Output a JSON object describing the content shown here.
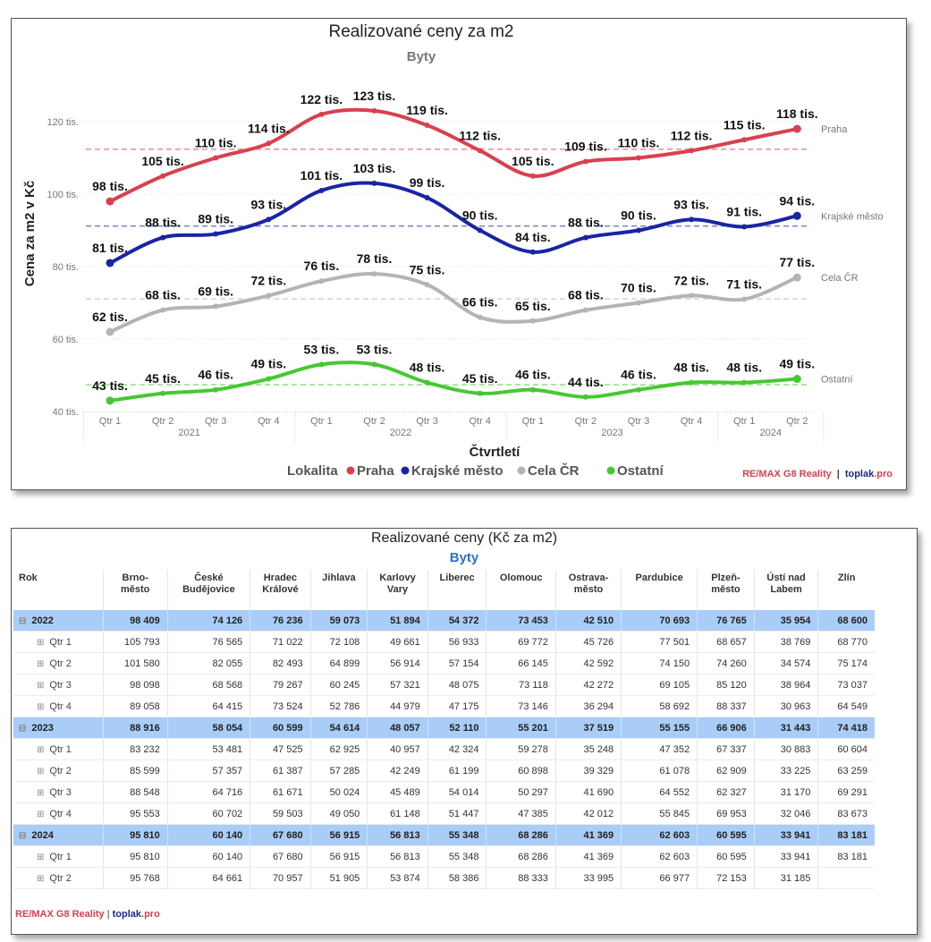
{
  "chart": {
    "title": "Realizované ceny za m2",
    "subtitle": "Byty",
    "legend_title": "Lokalita",
    "branding": {
      "part1": "RE/MAX G8 Reality",
      "separator": "|",
      "part2a": "toplak",
      "part2b": ".pro"
    }
  },
  "chart_data": {
    "type": "line",
    "title": "Realizované ceny za m2",
    "subtitle": "Byty",
    "xlabel": "Čtvrtletí",
    "ylabel": "Cena za m2 v Kč",
    "ylim": [
      40000,
      125000
    ],
    "yticks": [
      40000,
      60000,
      80000,
      100000,
      120000
    ],
    "ytick_labels": [
      "40 tis.",
      "60 tis.",
      "80 tis.",
      "100 tis.",
      "120 tis."
    ],
    "grid": true,
    "legend_position": "bottom",
    "x": [
      "Qtr 1",
      "Qtr 2",
      "Qtr 3",
      "Qtr 4",
      "Qtr 1",
      "Qtr 2",
      "Qtr 3",
      "Qtr 4",
      "Qtr 1",
      "Qtr 2",
      "Qtr 3",
      "Qtr 4",
      "Qtr 1",
      "Qtr 2"
    ],
    "x_groups": [
      {
        "label": "2021",
        "count": 4
      },
      {
        "label": "2022",
        "count": 4
      },
      {
        "label": "2023",
        "count": 4
      },
      {
        "label": "2024",
        "count": 2
      }
    ],
    "series": [
      {
        "name": "Praha",
        "color": "#d9404f",
        "avg_line": 112400,
        "values": [
          98000,
          105000,
          110000,
          114000,
          122000,
          123000,
          119000,
          112000,
          105000,
          109000,
          110000,
          112000,
          115000,
          118000
        ],
        "labels": [
          "98 tis.",
          "105 tis.",
          "110 tis.",
          "114 tis.",
          "122 tis.",
          "123 tis.",
          "119 tis.",
          "112 tis.",
          "105 tis.",
          "109 tis.",
          "110 tis.",
          "112 tis.",
          "115 tis.",
          "118 tis."
        ]
      },
      {
        "name": "Krajské město",
        "color": "#1a25a3",
        "avg_line": 91200,
        "values": [
          81000,
          88000,
          89000,
          93000,
          101000,
          103000,
          99000,
          90000,
          84000,
          88000,
          90000,
          93000,
          91000,
          94000
        ],
        "labels": [
          "81 tis.",
          "88 tis.",
          "89 tis.",
          "93 tis.",
          "101 tis.",
          "103 tis.",
          "99 tis.",
          "90 tis.",
          "84 tis.",
          "88 tis.",
          "90 tis.",
          "93 tis.",
          "91 tis.",
          "94 tis."
        ]
      },
      {
        "name": "Cela ČR",
        "color": "#b4b4b4",
        "avg_line": 71100,
        "values": [
          62000,
          68000,
          69000,
          72000,
          76000,
          78000,
          75000,
          66000,
          65000,
          68000,
          70000,
          72000,
          71000,
          77000
        ],
        "labels": [
          "62 tis.",
          "68 tis.",
          "69 tis.",
          "72 tis.",
          "76 tis.",
          "78 tis.",
          "75 tis.",
          "66 tis.",
          "65 tis.",
          "68 tis.",
          "70 tis.",
          "72 tis.",
          "71 tis.",
          "77 tis."
        ]
      },
      {
        "name": "Ostatní",
        "color": "#46c832",
        "avg_line": 47400,
        "values": [
          43000,
          45000,
          46000,
          49000,
          53000,
          53000,
          48000,
          45000,
          46000,
          44000,
          46000,
          48000,
          48000,
          49000
        ],
        "labels": [
          "43 tis.",
          "45 tis.",
          "46 tis.",
          "49 tis.",
          "53 tis.",
          "53 tis.",
          "48 tis.",
          "45 tis.",
          "46 tis.",
          "44 tis.",
          "46 tis.",
          "48 tis.",
          "48 tis.",
          "49 tis."
        ]
      }
    ]
  },
  "table": {
    "title": "Realizované ceny (Kč za m2)",
    "subtitle": "Byty",
    "columns": [
      "Rok",
      "Brno-\nměsto",
      "České\nBudějovice",
      "Hradec\nKrálové",
      "Jihlava",
      "Karlovy\nVary",
      "Liberec",
      "Olomouc",
      "Ostrava-\nměsto",
      "Pardubice",
      "Plzeň-\nměsto",
      "Ústí nad\nLabem",
      "Zlín"
    ],
    "rows": [
      {
        "type": "year",
        "label": "2022",
        "icon": "collapse-icon",
        "values": [
          "98 409",
          "74 126",
          "76 236",
          "59 073",
          "51 894",
          "54 372",
          "73 453",
          "42 510",
          "70 693",
          "76 765",
          "35 954",
          "68 600"
        ]
      },
      {
        "type": "q",
        "label": "Qtr 1",
        "icon": "expand-icon",
        "values": [
          "105 793",
          "76 565",
          "71 022",
          "72 108",
          "49 661",
          "56 933",
          "69 772",
          "45 726",
          "77 501",
          "68 657",
          "38 769",
          "68 770"
        ]
      },
      {
        "type": "q",
        "label": "Qtr 2",
        "icon": "expand-icon",
        "values": [
          "101 580",
          "82 055",
          "82 493",
          "64 899",
          "56 914",
          "57 154",
          "66 145",
          "42 592",
          "74 150",
          "74 260",
          "34 574",
          "75 174"
        ]
      },
      {
        "type": "q",
        "label": "Qtr 3",
        "icon": "expand-icon",
        "values": [
          "98 098",
          "68 568",
          "79 267",
          "60 245",
          "57 321",
          "48 075",
          "73 118",
          "42 272",
          "69 105",
          "85 120",
          "38 964",
          "73 037"
        ]
      },
      {
        "type": "q",
        "label": "Qtr 4",
        "icon": "expand-icon",
        "values": [
          "89 058",
          "64 415",
          "73 524",
          "52 786",
          "44 979",
          "47 175",
          "73 146",
          "36 294",
          "58 692",
          "88 337",
          "30 963",
          "64 549"
        ]
      },
      {
        "type": "year",
        "label": "2023",
        "icon": "collapse-icon",
        "values": [
          "88 916",
          "58 054",
          "60 599",
          "54 614",
          "48 057",
          "52 110",
          "55 201",
          "37 519",
          "55 155",
          "66 906",
          "31 443",
          "74 418"
        ]
      },
      {
        "type": "q",
        "label": "Qtr 1",
        "icon": "expand-icon",
        "values": [
          "83 232",
          "53 481",
          "47 525",
          "62 925",
          "40 957",
          "42 324",
          "59 278",
          "35 248",
          "47 352",
          "67 337",
          "30 883",
          "60 604"
        ]
      },
      {
        "type": "q",
        "label": "Qtr 2",
        "icon": "expand-icon",
        "values": [
          "85 599",
          "57 357",
          "61 387",
          "57 285",
          "42 249",
          "61 199",
          "60 898",
          "39 329",
          "61 078",
          "62 909",
          "33 225",
          "63 259"
        ]
      },
      {
        "type": "q",
        "label": "Qtr 3",
        "icon": "expand-icon",
        "values": [
          "88 548",
          "64 716",
          "61 671",
          "50 024",
          "45 489",
          "54 014",
          "50 297",
          "41 690",
          "64 552",
          "62 327",
          "31 170",
          "69 291"
        ]
      },
      {
        "type": "q",
        "label": "Qtr 4",
        "icon": "expand-icon",
        "values": [
          "95 553",
          "60 702",
          "59 503",
          "49 050",
          "61 148",
          "51 447",
          "47 385",
          "42 012",
          "55 845",
          "69 953",
          "32 046",
          "83 673"
        ]
      },
      {
        "type": "year",
        "label": "2024",
        "icon": "collapse-icon",
        "values": [
          "95 810",
          "60 140",
          "67 680",
          "56 915",
          "56 813",
          "55 348",
          "68 286",
          "41 369",
          "62 603",
          "60 595",
          "33 941",
          "83 181"
        ]
      },
      {
        "type": "q",
        "label": "Qtr 1",
        "icon": "expand-icon",
        "values": [
          "95 810",
          "60 140",
          "67 680",
          "56 915",
          "56 813",
          "55 348",
          "68 286",
          "41 369",
          "62 603",
          "60 595",
          "33 941",
          "83 181"
        ]
      },
      {
        "type": "q",
        "label": "Qtr 2",
        "icon": "expand-icon",
        "values": [
          "95 768",
          "64 661",
          "70 957",
          "51 905",
          "53 874",
          "58 386",
          "88 333",
          "33 995",
          "66 977",
          "72 153",
          "31 185",
          ""
        ]
      }
    ],
    "branding": {
      "re": "RE",
      "slash_max": "/MAX G8 Reality",
      "separator": "|",
      "toplak": "toplak",
      "pro": ".pro"
    }
  }
}
